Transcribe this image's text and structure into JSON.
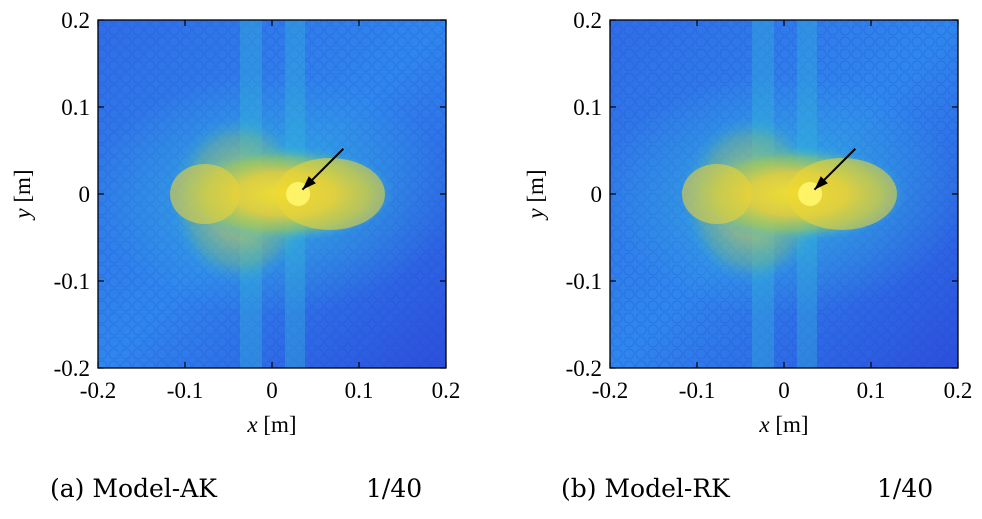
{
  "chart_data": [
    {
      "type": "heatmap",
      "xlabel_var": "x",
      "xlabel_unit": " [m]",
      "ylabel_var": "y",
      "ylabel_unit": " [m]",
      "xlim": [
        -0.2,
        0.2
      ],
      "ylim": [
        -0.2,
        0.2
      ],
      "xticks": [
        "-0.2",
        "-0.1",
        "0",
        "0.1",
        "0.2"
      ],
      "yticks": [
        "0.2",
        "0.1",
        "0",
        "-0.1",
        "-0.2"
      ],
      "arrow_tip": {
        "x": 0.035,
        "y": 0.005
      },
      "arrow_tail": {
        "x": 0.082,
        "y": 0.052
      },
      "bright_spot": {
        "x": 0.03,
        "y": 0.0
      },
      "colormap": [
        "#2a2bd0",
        "#2a75f0",
        "#2fb5d6",
        "#6cc76c",
        "#c6c43a",
        "#f7e22c"
      ],
      "caption": "(a) Model-AK",
      "ratio": "1/40"
    },
    {
      "type": "heatmap",
      "xlabel_var": "x",
      "xlabel_unit": " [m]",
      "ylabel_var": "y",
      "ylabel_unit": " [m]",
      "xlim": [
        -0.2,
        0.2
      ],
      "ylim": [
        -0.2,
        0.2
      ],
      "xticks": [
        "-0.2",
        "-0.1",
        "0",
        "0.1",
        "0.2"
      ],
      "yticks": [
        "0.2",
        "0.1",
        "0",
        "-0.1",
        "-0.2"
      ],
      "arrow_tip": {
        "x": 0.035,
        "y": 0.005
      },
      "arrow_tail": {
        "x": 0.082,
        "y": 0.052
      },
      "bright_spot": {
        "x": 0.03,
        "y": 0.0
      },
      "colormap": [
        "#2a2bd0",
        "#2a75f0",
        "#2fb5d6",
        "#6cc76c",
        "#c6c43a",
        "#f7e22c"
      ],
      "caption": "(b) Model-RK",
      "ratio": "1/40"
    }
  ]
}
